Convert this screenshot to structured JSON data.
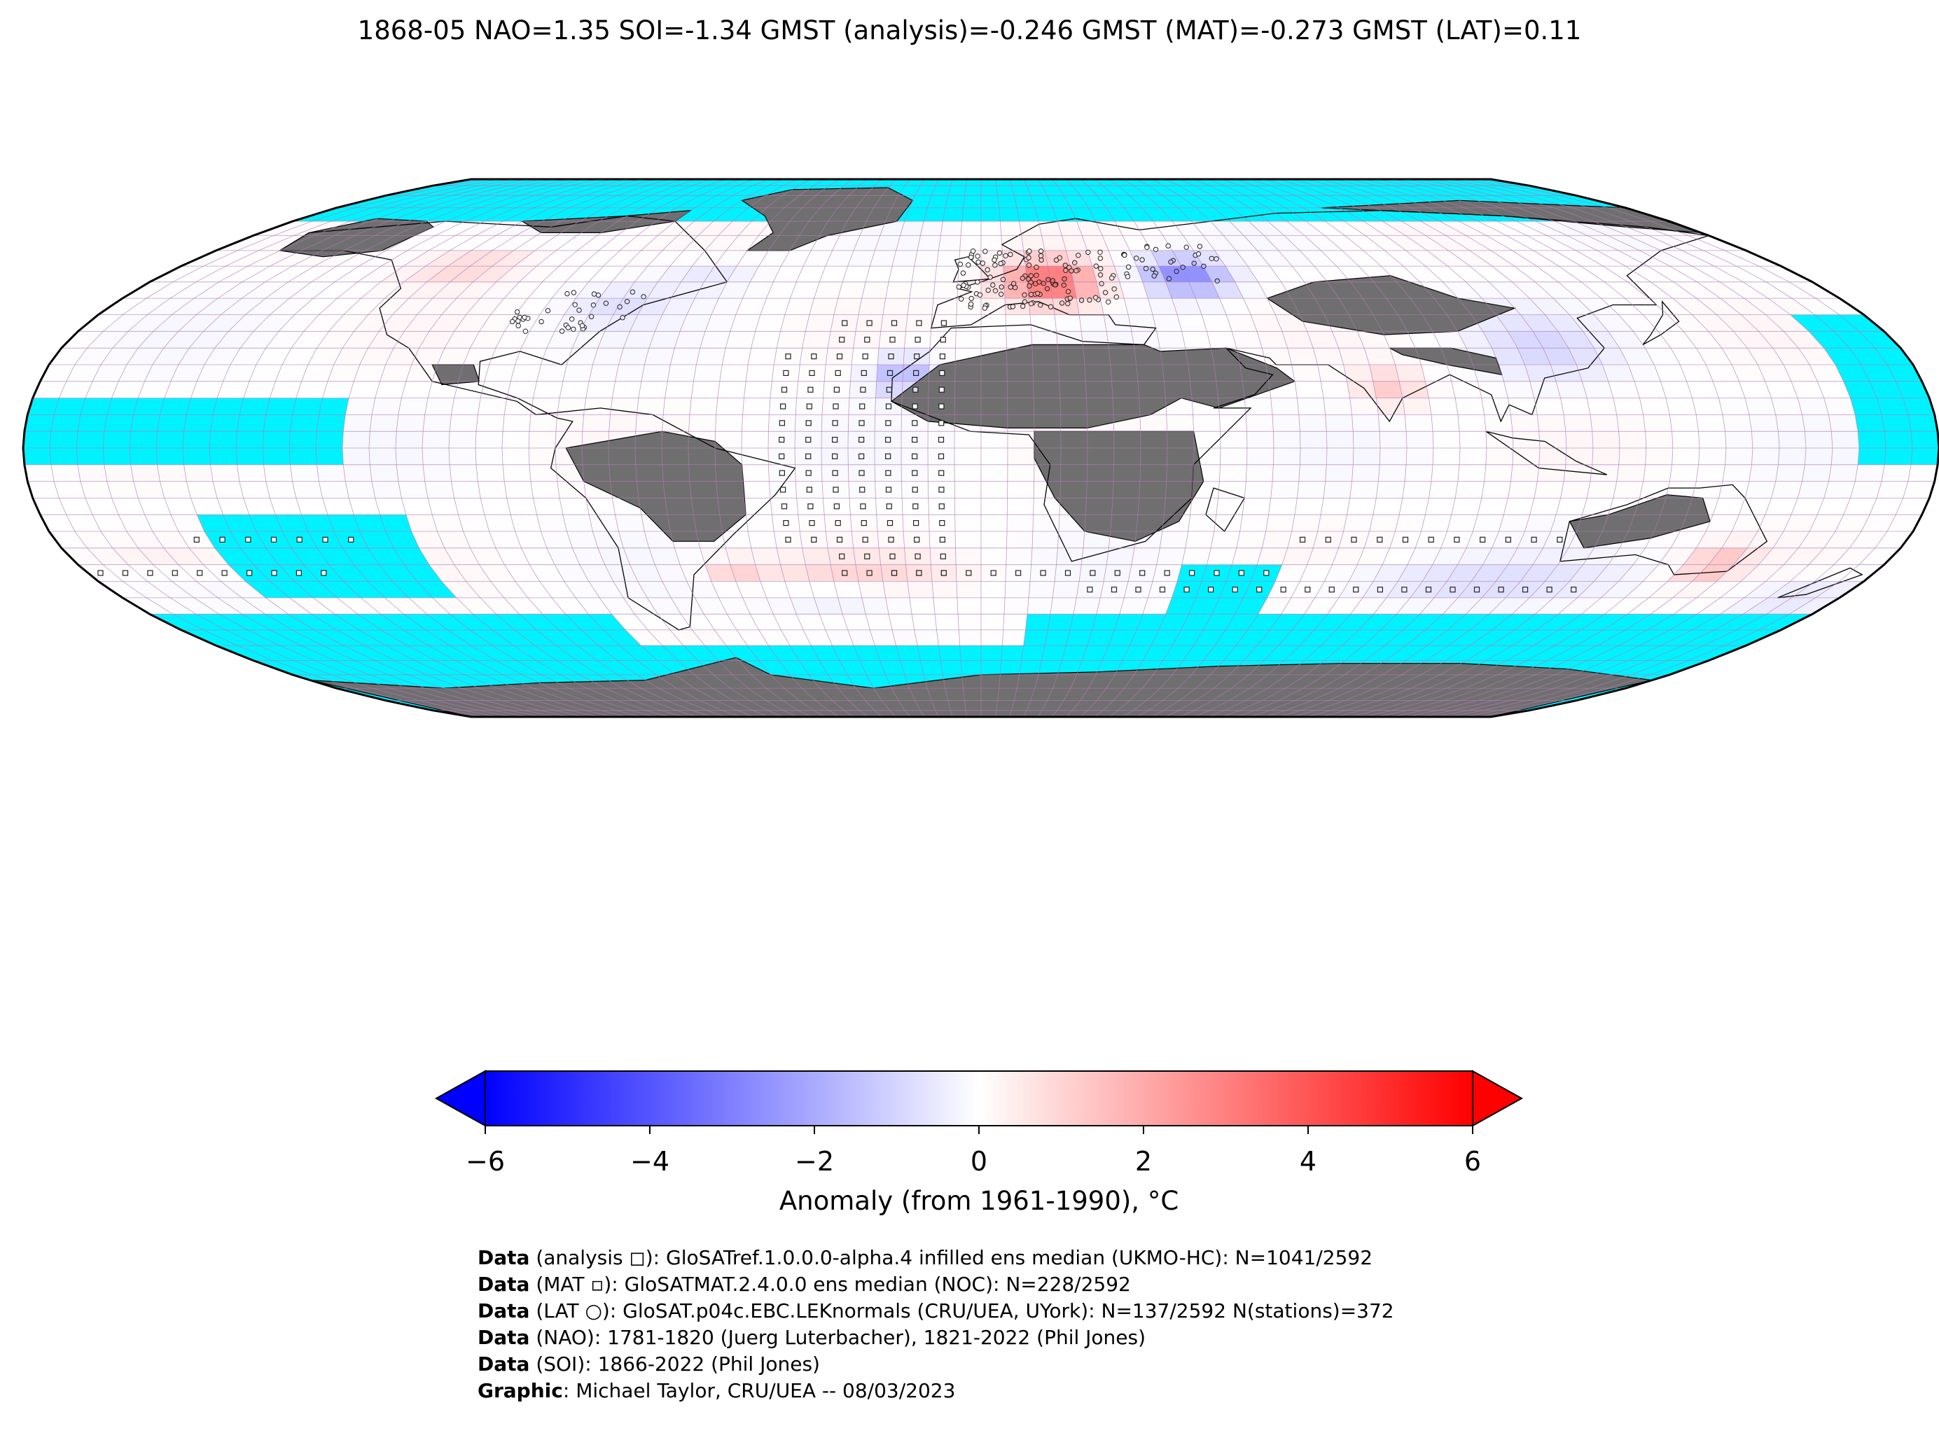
{
  "title": "1868-05 NAO=1.35 SOI=-1.34 GMST (analysis)=-0.246 GMST (MAT)=-0.273 GMST (LAT)=0.11",
  "colors": {
    "ocean_missing": "#00f2ff",
    "land_missing": "#6f6f6f",
    "grid_line": "#b57ab5",
    "coast": "#000000",
    "cold_end": "#0000ff",
    "neutral": "#ffffff",
    "warm_end": "#ff0000"
  },
  "colorbar": {
    "label": "Anomaly (from 1961-1990), °C",
    "ticks": [
      "−6",
      "−4",
      "−2",
      "0",
      "2",
      "4",
      "6"
    ],
    "tick_values": [
      -6,
      -4,
      -2,
      0,
      2,
      4,
      6
    ],
    "range": [
      -6,
      6
    ],
    "extend": "both"
  },
  "map": {
    "projection": "Robinson",
    "grid_deg": 5,
    "legend_marks": {
      "analysis": "open square",
      "MAT": "small square",
      "LAT": "open circle"
    },
    "anomaly_regions": [
      {
        "name": "Central Europe",
        "anomaly": 3.5
      },
      {
        "name": "Western Russia",
        "anomaly": -2.8
      },
      {
        "name": "NW Africa coast",
        "anomaly": -1.8
      },
      {
        "name": "Western Canada",
        "anomaly": 1.2
      },
      {
        "name": "India",
        "anomaly": 1.2
      },
      {
        "name": "SE Australia",
        "anomaly": 1.6
      },
      {
        "name": "South Atlantic",
        "anomaly": 0.8
      },
      {
        "name": "Southern Indian Ocean",
        "anomaly": -0.8
      }
    ]
  },
  "credits": [
    {
      "bold": "Data",
      "text": " (analysis ◻): GloSATref.1.0.0.0-alpha.4 infilled ens median (UKMO-HC): N=1041/2592"
    },
    {
      "bold": "Data",
      "text": " (MAT ▫): GloSATMAT.2.4.0.0 ens median (NOC): N=228/2592"
    },
    {
      "bold": "Data",
      "text": " (LAT ○): GloSAT.p04c.EBC.LEKnormals (CRU/UEA, UYork): N=137/2592 N(stations)=372"
    },
    {
      "bold": "Data",
      "text": " (NAO): 1781-1820 (Juerg Luterbacher), 1821-2022 (Phil Jones)"
    },
    {
      "bold": "Data",
      "text": " (SOI): 1866-2022 (Phil Jones)"
    },
    {
      "bold": "Graphic",
      "text": ": Michael Taylor, CRU/UEA -- 08/03/2023"
    }
  ]
}
